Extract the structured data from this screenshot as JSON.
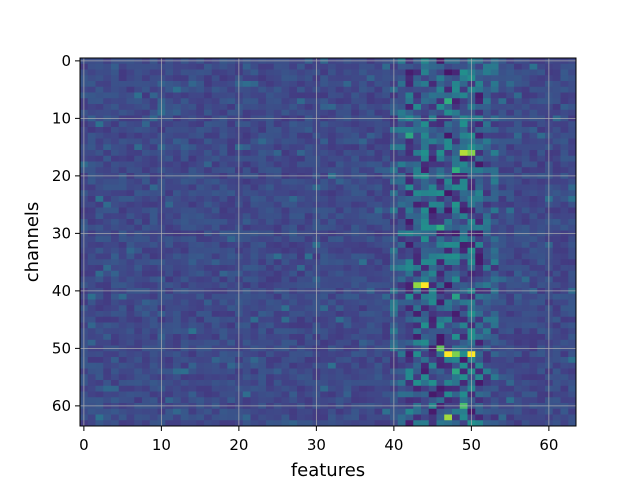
{
  "chart_data": {
    "type": "heatmap",
    "title": "",
    "xlabel": "features",
    "ylabel": "channels",
    "x_range": [
      -0.5,
      63.5
    ],
    "y_range": [
      -0.5,
      63.5
    ],
    "y_inverted": true,
    "x_ticks": [
      0,
      10,
      20,
      30,
      40,
      50,
      60
    ],
    "y_ticks": [
      0,
      10,
      20,
      30,
      40,
      50,
      60
    ],
    "grid": true,
    "colormap": "viridis",
    "n_rows": 64,
    "n_cols": 64,
    "background_value": 0.28,
    "hot_band": {
      "col_start": 40,
      "col_end": 53,
      "strong_start": 42,
      "strong_end": 51
    },
    "bright_cells": [
      {
        "row": 7,
        "col": 47,
        "value": 0.72
      },
      {
        "row": 13,
        "col": 42,
        "value": 0.7
      },
      {
        "row": 16,
        "col": 49,
        "value": 0.92
      },
      {
        "row": 16,
        "col": 50,
        "value": 0.86
      },
      {
        "row": 19,
        "col": 48,
        "value": 0.72
      },
      {
        "row": 22,
        "col": 42,
        "value": 0.62
      },
      {
        "row": 25,
        "col": 48,
        "value": 0.64
      },
      {
        "row": 29,
        "col": 46,
        "value": 0.72
      },
      {
        "row": 34,
        "col": 48,
        "value": 0.62
      },
      {
        "row": 39,
        "col": 43,
        "value": 0.88
      },
      {
        "row": 39,
        "col": 44,
        "value": 1.0
      },
      {
        "row": 41,
        "col": 48,
        "value": 0.68
      },
      {
        "row": 50,
        "col": 46,
        "value": 0.82
      },
      {
        "row": 51,
        "col": 47,
        "value": 1.0
      },
      {
        "row": 51,
        "col": 48,
        "value": 0.85
      },
      {
        "row": 51,
        "col": 50,
        "value": 1.0
      },
      {
        "row": 54,
        "col": 48,
        "value": 0.7
      },
      {
        "row": 60,
        "col": 49,
        "value": 0.78
      },
      {
        "row": 62,
        "col": 47,
        "value": 0.9
      }
    ]
  }
}
